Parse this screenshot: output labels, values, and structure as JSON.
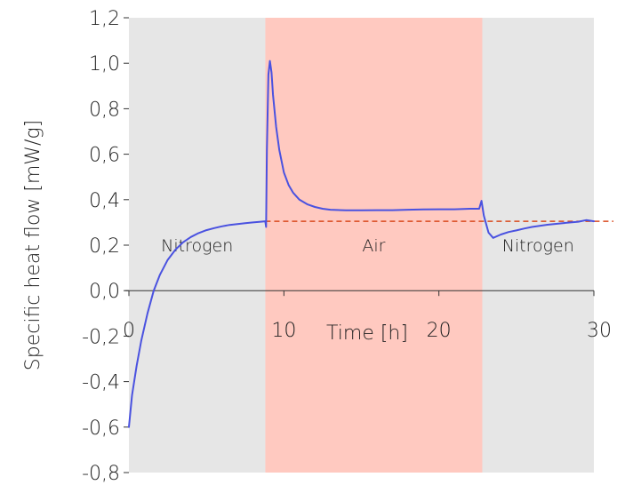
{
  "chart_data": {
    "type": "line",
    "xlabel": "Time [h]",
    "ylabel": "Specific heat flow [mW/g]",
    "xlim": [
      0,
      30
    ],
    "ylim": [
      -0.8,
      1.2
    ],
    "x_ticks": [
      0,
      10,
      20,
      30
    ],
    "x_tick_labels": [
      "0",
      "10",
      "20",
      "30"
    ],
    "y_ticks": [
      -0.8,
      -0.6,
      -0.4,
      -0.2,
      0.0,
      0.2,
      0.4,
      0.6,
      0.8,
      1.0,
      1.2
    ],
    "y_tick_labels": [
      "-0,8",
      "-0,6",
      "-0,4",
      "-0,2",
      "0,0",
      "0,2",
      "0,4",
      "0,6",
      "0,8",
      "1,0",
      "1,2"
    ],
    "regions": [
      {
        "label": "Nitrogen",
        "x_start": 0,
        "x_end": 8.8,
        "color": "#e6e6e6"
      },
      {
        "label": "Air",
        "x_start": 8.8,
        "x_end": 22.8,
        "color": "#ffc9c0"
      },
      {
        "label": "Nitrogen",
        "x_start": 22.8,
        "x_end": 30,
        "color": "#e6e6e6"
      }
    ],
    "series": [
      {
        "color": "#4a52e0",
        "x": [
          0,
          0.2,
          0.5,
          0.8,
          1.2,
          1.6,
          2,
          2.5,
          3,
          3.5,
          4,
          4.5,
          5,
          5.5,
          6,
          6.5,
          7,
          7.5,
          8,
          8.5,
          8.8,
          8.85,
          8.9,
          9.0,
          9.1,
          9.2,
          9.3,
          9.5,
          9.7,
          10,
          10.3,
          10.6,
          11,
          11.5,
          12,
          12.5,
          13,
          14,
          15,
          16,
          17,
          18,
          19,
          20,
          21,
          22,
          22.6,
          22.75,
          22.9,
          23.2,
          23.5,
          24,
          24.5,
          25,
          25.5,
          26,
          27,
          28,
          29,
          29.5,
          30
        ],
        "y": [
          -0.6,
          -0.46,
          -0.33,
          -0.22,
          -0.1,
          0.0,
          0.07,
          0.135,
          0.18,
          0.213,
          0.236,
          0.253,
          0.266,
          0.275,
          0.283,
          0.289,
          0.293,
          0.297,
          0.3,
          0.303,
          0.305,
          0.28,
          0.62,
          0.95,
          1.01,
          0.96,
          0.86,
          0.72,
          0.62,
          0.52,
          0.465,
          0.43,
          0.4,
          0.38,
          0.368,
          0.36,
          0.356,
          0.353,
          0.353,
          0.354,
          0.354,
          0.356,
          0.357,
          0.358,
          0.358,
          0.36,
          0.36,
          0.395,
          0.33,
          0.255,
          0.232,
          0.247,
          0.258,
          0.265,
          0.273,
          0.28,
          0.29,
          0.297,
          0.303,
          0.31,
          0.305
        ]
      }
    ],
    "reference_line": {
      "y": 0.305,
      "style": "dashed",
      "color": "#d94a1e"
    }
  }
}
